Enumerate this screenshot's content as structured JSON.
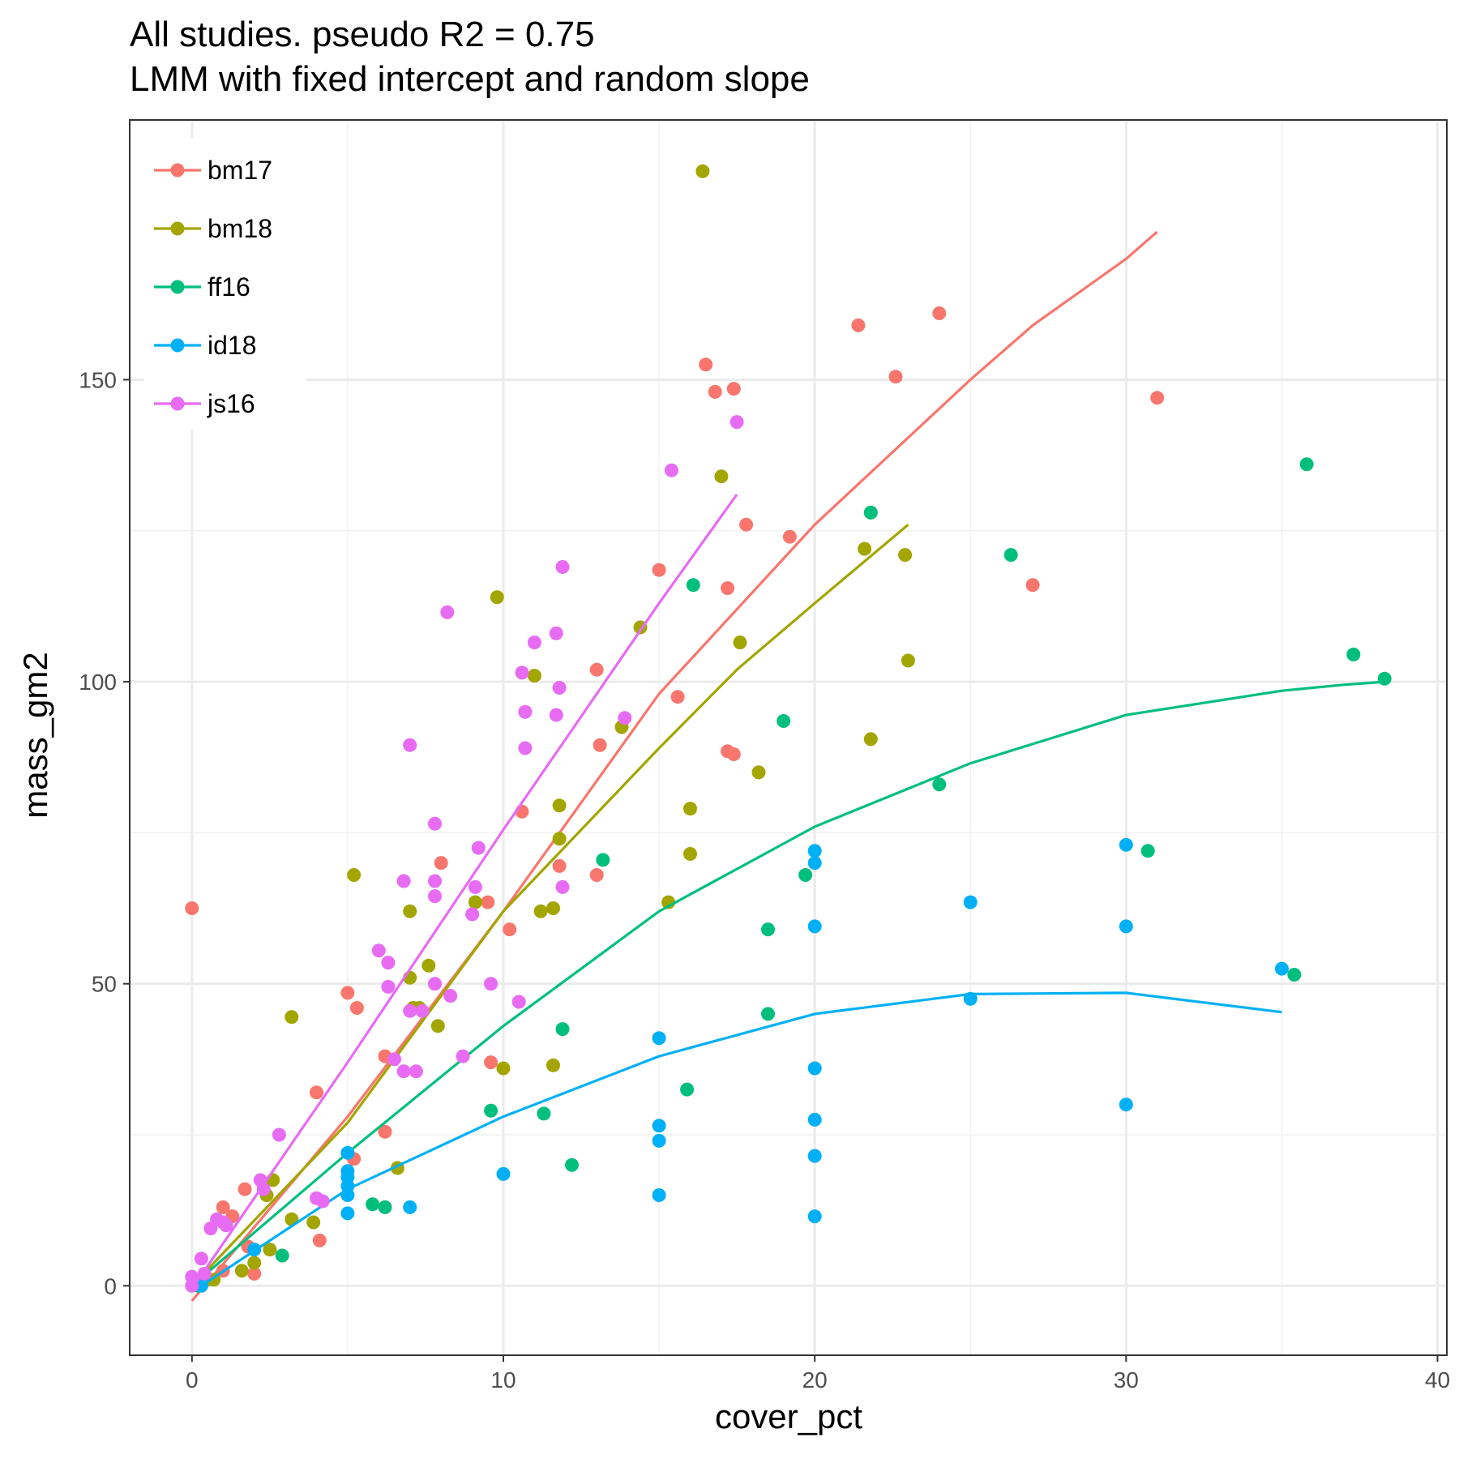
{
  "chart_data": {
    "type": "scatter",
    "title": "All studies. pseudo R2 =  0.75",
    "subtitle": "LMM with fixed intercept and random slope",
    "xlabel": "cover_pct",
    "ylabel": "mass_gm2",
    "xlim": [
      -2,
      40.3
    ],
    "ylim": [
      -11.5,
      193
    ],
    "x_ticks": [
      "0",
      "10",
      "20",
      "30",
      "40"
    ],
    "y_ticks": [
      "0",
      "50",
      "100",
      "150"
    ],
    "grid": true,
    "legend_position": "top-left",
    "series": [
      {
        "name": "bm17",
        "color": "#F8766D",
        "points": [
          [
            0,
            62.5
          ],
          [
            1,
            13
          ],
          [
            1.3,
            11.5
          ],
          [
            1.7,
            16
          ],
          [
            1.8,
            6.5
          ],
          [
            2,
            2
          ],
          [
            1,
            2.5
          ],
          [
            4,
            32
          ],
          [
            4.1,
            7.5
          ],
          [
            5,
            48.5
          ],
          [
            5.2,
            21
          ],
          [
            5.3,
            46
          ],
          [
            6.2,
            25.5
          ],
          [
            6.2,
            38
          ],
          [
            8,
            70
          ],
          [
            9.5,
            63.5
          ],
          [
            9.6,
            37
          ],
          [
            10.2,
            59
          ],
          [
            10.6,
            78.5
          ],
          [
            11.8,
            69.5
          ],
          [
            13,
            68
          ],
          [
            13,
            102
          ],
          [
            13.1,
            89.5
          ],
          [
            15,
            118.5
          ],
          [
            15.6,
            97.5
          ],
          [
            16.5,
            152.5
          ],
          [
            16.8,
            148
          ],
          [
            17.2,
            115.5
          ],
          [
            17.2,
            88.5
          ],
          [
            17.4,
            88
          ],
          [
            17.4,
            148.5
          ],
          [
            17.8,
            126
          ],
          [
            19.2,
            124
          ],
          [
            21.4,
            159
          ],
          [
            21.8,
            128
          ],
          [
            22.6,
            150.5
          ],
          [
            24,
            161
          ],
          [
            27,
            116
          ],
          [
            31,
            147
          ]
        ],
        "fit": [
          [
            0,
            -2.5
          ],
          [
            5,
            28
          ],
          [
            10,
            62
          ],
          [
            15,
            98
          ],
          [
            20,
            126
          ],
          [
            25,
            150
          ],
          [
            27,
            159
          ],
          [
            30,
            170
          ],
          [
            31,
            174.5
          ]
        ]
      },
      {
        "name": "bm18",
        "color": "#A3A500",
        "points": [
          [
            0.5,
            1
          ],
          [
            0.7,
            1
          ],
          [
            1.6,
            2.5
          ],
          [
            2,
            3.8
          ],
          [
            2.5,
            6
          ],
          [
            2.4,
            15
          ],
          [
            2.6,
            17.5
          ],
          [
            3.2,
            44.5
          ],
          [
            3.2,
            11
          ],
          [
            3.9,
            10.5
          ],
          [
            5.2,
            68
          ],
          [
            6.6,
            19.5
          ],
          [
            7,
            62
          ],
          [
            7,
            51
          ],
          [
            7.1,
            46
          ],
          [
            7.3,
            46
          ],
          [
            7.6,
            53
          ],
          [
            7.9,
            43
          ],
          [
            9.1,
            63.5
          ],
          [
            9.8,
            114
          ],
          [
            10,
            36
          ],
          [
            11,
            101
          ],
          [
            11.2,
            62
          ],
          [
            11.6,
            36.5
          ],
          [
            11.6,
            62.5
          ],
          [
            11.8,
            79.5
          ],
          [
            11.8,
            74
          ],
          [
            13.8,
            92.5
          ],
          [
            14.4,
            109
          ],
          [
            15.3,
            63.5
          ],
          [
            16,
            79
          ],
          [
            16,
            71.5
          ],
          [
            16.4,
            184.5
          ],
          [
            17,
            134
          ],
          [
            17.6,
            106.5
          ],
          [
            18.2,
            85
          ],
          [
            21.6,
            122
          ],
          [
            21.8,
            90.5
          ],
          [
            22.9,
            121
          ],
          [
            23,
            103.5
          ]
        ],
        "fit": [
          [
            0,
            0
          ],
          [
            5,
            27
          ],
          [
            10,
            62
          ],
          [
            15,
            89
          ],
          [
            17.5,
            102
          ],
          [
            20,
            113
          ],
          [
            23,
            126
          ]
        ]
      },
      {
        "name": "ff16",
        "color": "#00BF7D",
        "points": [
          [
            0.2,
            0
          ],
          [
            0.3,
            1
          ],
          [
            2.9,
            5
          ],
          [
            5.8,
            13.5
          ],
          [
            6.2,
            13
          ],
          [
            9.6,
            29
          ],
          [
            11.3,
            28.5
          ],
          [
            11.9,
            42.5
          ],
          [
            12.2,
            20
          ],
          [
            13.2,
            70.5
          ],
          [
            15.9,
            32.5
          ],
          [
            16.1,
            116
          ],
          [
            18.5,
            45
          ],
          [
            18.5,
            59
          ],
          [
            19,
            93.5
          ],
          [
            19.7,
            68
          ],
          [
            21.8,
            128
          ],
          [
            24,
            83
          ],
          [
            26.3,
            121
          ],
          [
            30.7,
            72
          ],
          [
            35.4,
            51.5
          ],
          [
            35.8,
            136
          ],
          [
            37.3,
            104.5
          ],
          [
            38.3,
            100.5
          ]
        ],
        "fit": [
          [
            0,
            0
          ],
          [
            5,
            22
          ],
          [
            10,
            43
          ],
          [
            15,
            62
          ],
          [
            20,
            76
          ],
          [
            25,
            86.5
          ],
          [
            30,
            94.5
          ],
          [
            35,
            98.5
          ],
          [
            37,
            99.5
          ],
          [
            38.3,
            100
          ]
        ]
      },
      {
        "name": "id18",
        "color": "#00B0F6",
        "points": [
          [
            0.3,
            0
          ],
          [
            2,
            6
          ],
          [
            5,
            22
          ],
          [
            5,
            19
          ],
          [
            5,
            18
          ],
          [
            5,
            15
          ],
          [
            5,
            16.5
          ],
          [
            5,
            12
          ],
          [
            7,
            13
          ],
          [
            10,
            18.5
          ],
          [
            15,
            41
          ],
          [
            15,
            26.5
          ],
          [
            15,
            24
          ],
          [
            15,
            15
          ],
          [
            20,
            72
          ],
          [
            20,
            70
          ],
          [
            20,
            59.5
          ],
          [
            20,
            36
          ],
          [
            20,
            27.5
          ],
          [
            20,
            21.5
          ],
          [
            20,
            11.5
          ],
          [
            25,
            63.5
          ],
          [
            25,
            47.5
          ],
          [
            30,
            73
          ],
          [
            30,
            59.5
          ],
          [
            30,
            30
          ],
          [
            35,
            52.5
          ]
        ],
        "fit": [
          [
            0.3,
            0
          ],
          [
            5,
            16
          ],
          [
            10,
            28
          ],
          [
            15,
            38
          ],
          [
            20,
            45
          ],
          [
            25,
            48.3
          ],
          [
            30,
            48.5
          ],
          [
            35,
            45.3
          ]
        ]
      },
      {
        "name": "js16",
        "color": "#E76BF3",
        "points": [
          [
            0,
            0
          ],
          [
            0,
            1.5
          ],
          [
            0.3,
            4.5
          ],
          [
            0.4,
            2
          ],
          [
            0.6,
            9.5
          ],
          [
            0.8,
            11
          ],
          [
            1,
            10.5
          ],
          [
            1.1,
            10
          ],
          [
            2.2,
            17.5
          ],
          [
            2.3,
            16
          ],
          [
            2.8,
            25
          ],
          [
            4,
            14.5
          ],
          [
            4.2,
            14
          ],
          [
            6,
            55.5
          ],
          [
            6.3,
            53.5
          ],
          [
            6.3,
            49.5
          ],
          [
            6.5,
            37.5
          ],
          [
            6.8,
            35.5
          ],
          [
            6.8,
            67
          ],
          [
            7,
            45.5
          ],
          [
            7,
            89.5
          ],
          [
            7.2,
            35.5
          ],
          [
            7.4,
            45.5
          ],
          [
            7.8,
            76.5
          ],
          [
            7.8,
            67
          ],
          [
            7.8,
            64.5
          ],
          [
            7.8,
            50
          ],
          [
            8.2,
            111.5
          ],
          [
            8.3,
            48
          ],
          [
            8.7,
            38
          ],
          [
            9,
            61.5
          ],
          [
            9.1,
            66
          ],
          [
            9.2,
            72.5
          ],
          [
            9.6,
            50
          ],
          [
            10.5,
            47
          ],
          [
            10.6,
            101.5
          ],
          [
            10.7,
            95
          ],
          [
            10.7,
            89
          ],
          [
            11,
            106.5
          ],
          [
            11.7,
            108
          ],
          [
            11.7,
            94.5
          ],
          [
            11.8,
            99
          ],
          [
            11.9,
            66
          ],
          [
            11.9,
            119
          ],
          [
            13.9,
            94
          ],
          [
            15.4,
            135
          ],
          [
            17.5,
            143
          ]
        ],
        "fit": [
          [
            0,
            -0.5
          ],
          [
            5,
            37
          ],
          [
            10,
            75.5
          ],
          [
            15,
            113
          ],
          [
            17.5,
            131
          ]
        ]
      }
    ]
  }
}
